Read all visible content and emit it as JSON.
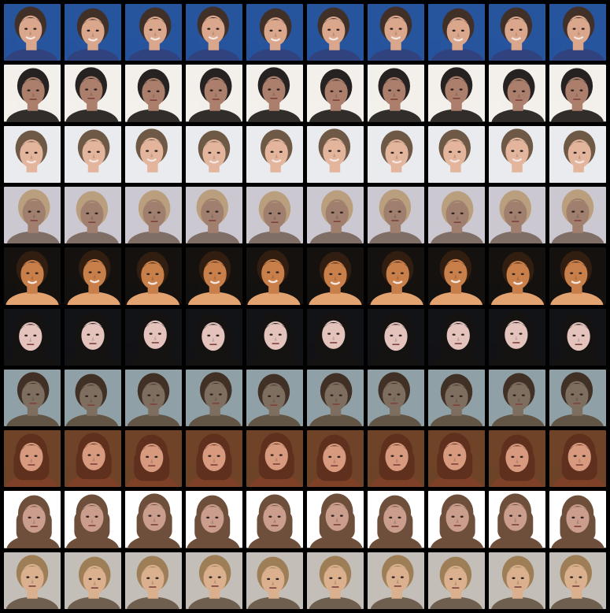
{
  "grid": {
    "rows": 10,
    "columns": 10,
    "row_subjects": [
      {
        "id": "row-1",
        "background": "#1f4f9a",
        "skin": "#d9a58a",
        "hair": "#3b2a22",
        "clothing": "#2a3d7a",
        "variant": "smiling-man"
      },
      {
        "id": "row-2",
        "background": "#f3f0ec",
        "skin": "#a97b68",
        "hair": "#1f1b1a",
        "clothing": "#2b2724",
        "variant": "man-dark-shirt"
      },
      {
        "id": "row-3",
        "background": "#e9ebee",
        "skin": "#e3b39a",
        "hair": "#6a5340",
        "clothing": "#e9ebee",
        "variant": "smiling-man-light"
      },
      {
        "id": "row-4",
        "background": "#cbc7d0",
        "skin": "#9d7b6a",
        "hair": "#b89c7a",
        "clothing": "#7a6a60",
        "variant": "profile-man"
      },
      {
        "id": "row-5",
        "background": "#0d0a08",
        "skin": "#c77b45",
        "hair": "#2b1709",
        "clothing": "#e3a06c",
        "variant": "orange-face"
      },
      {
        "id": "row-6",
        "background": "#0b0c10",
        "skin": "#e4c2bb",
        "hair": "#0e0b0b",
        "clothing": "#0e0b0b",
        "variant": "dark-hair-woman"
      },
      {
        "id": "row-7",
        "background": "#8c9ea4",
        "skin": "#7a6a5a",
        "hair": "#3a2a1f",
        "clothing": "#5d5040",
        "variant": "blurred-man"
      },
      {
        "id": "row-8",
        "background": "#6a3d21",
        "skin": "#d6977b",
        "hair": "#5a2a17",
        "clothing": "#7a3a20",
        "variant": "long-hair-woman"
      },
      {
        "id": "row-9",
        "background": "#ffffff",
        "skin": "#c99a8a",
        "hair": "#6a4a36",
        "clothing": "#6a4a36",
        "variant": "curly-hair-woman"
      },
      {
        "id": "row-10",
        "background": "#c2bcb5",
        "skin": "#d9ae8b",
        "hair": "#9a7a52",
        "clothing": "#6a5a4a",
        "variant": "pale-boy"
      }
    ]
  }
}
